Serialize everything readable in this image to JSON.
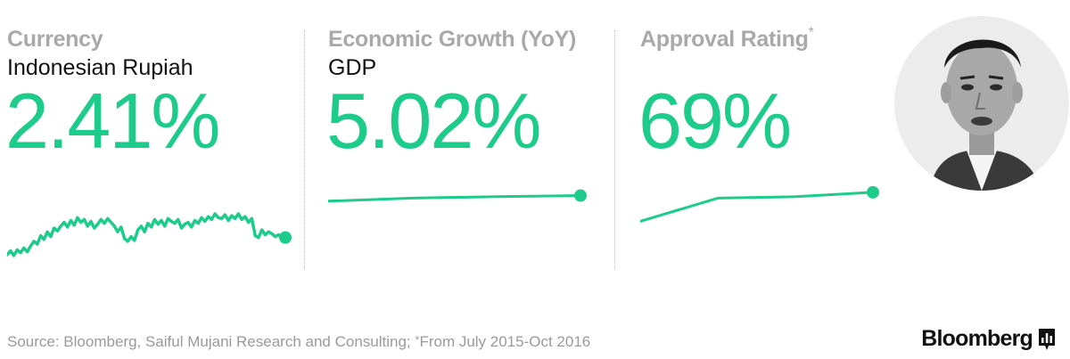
{
  "panels": [
    {
      "title": "Currency",
      "subtitle": "Indonesian Rupiah",
      "value": "2.41%"
    },
    {
      "title": "Economic Growth (YoY)",
      "subtitle": "GDP",
      "value": "5.02%"
    },
    {
      "title": "Approval Rating",
      "title_mark": "*",
      "subtitle": "",
      "value": "69%"
    }
  ],
  "colors": {
    "accent": "#1dcc8a",
    "title_gray": "#a9a9a9",
    "text": "#111111"
  },
  "footer": {
    "source": "Source: Bloomberg, Saiful Mujani Research and Consulting;",
    "note_mark": "*",
    "note": "From July 2015-Oct 2016",
    "brand": "Bloomberg",
    "brand_icon": "bloomberg-chart-icon"
  },
  "chart_data": [
    {
      "type": "line",
      "title": "Currency",
      "subtitle": "Indonesian Rupiah",
      "headline": "2.41%",
      "values": [
        0.2,
        0.6,
        0.1,
        0.7,
        0.4,
        0.9,
        0.5,
        1.1,
        1.6,
        1.3,
        2.2,
        1.8,
        2.6,
        2.1,
        3.0,
        2.7,
        3.2,
        3.6,
        3.1,
        3.8,
        3.3,
        4.1,
        3.6,
        3.9,
        3.2,
        3.7,
        3.0,
        3.4,
        3.9,
        3.5,
        4.0,
        3.6,
        3.2,
        2.6,
        3.1,
        1.9,
        1.6,
        2.1,
        1.7,
        2.8,
        3.2,
        2.6,
        3.5,
        3.1,
        3.9,
        3.4,
        3.8,
        3.2,
        4.0,
        3.7,
        3.5,
        3.9,
        3.0,
        3.4,
        3.6,
        3.1,
        3.8,
        3.5,
        4.1,
        3.7,
        4.2,
        3.9,
        4.5,
        4.1,
        4.0,
        4.4,
        3.8,
        4.3,
        4.0,
        4.5,
        3.9,
        4.2,
        3.6,
        4.0,
        2.2,
        2.0,
        2.8,
        2.3,
        2.6,
        2.4,
        2.1,
        2.3,
        1.9,
        2.0
      ]
    },
    {
      "type": "line",
      "title": "Economic Growth (YoY)",
      "subtitle": "GDP",
      "headline": "5.02%",
      "values": [
        4.91,
        4.97,
        5.0,
        5.02
      ]
    },
    {
      "type": "line",
      "title": "Approval Rating",
      "headline": "69%",
      "values": [
        49,
        65,
        66,
        69
      ]
    }
  ]
}
